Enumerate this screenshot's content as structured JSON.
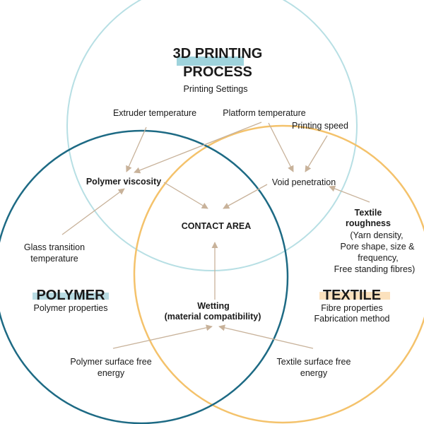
{
  "colors": {
    "process_circle": "#b7dfe4",
    "polymer_circle": "#1d6a84",
    "textile_circle": "#f4c26b",
    "arrow": "#c8b29a",
    "process_highlight": "#9fd3dc",
    "polymer_highlight": "#b9dce3",
    "textile_highlight": "#fbe1bd",
    "text": "#1a1a1a"
  },
  "process": {
    "title_line1": "3D PRINTING",
    "title_line2": "PROCESS",
    "subtitle": "Printing Settings"
  },
  "polymer": {
    "title": "POLYMER",
    "subtitle": "Polymer properties"
  },
  "textile": {
    "title": "TEXTILE",
    "subtitle_line1": "Fibre properties",
    "subtitle_line2": "Fabrication method"
  },
  "labels": {
    "extruder_temperature": "Extruder temperature",
    "platform_temperature": "Platform temperature",
    "printing_speed": "Printing speed",
    "polymer_viscosity": "Polymer viscosity",
    "void_penetration": "Void penetration",
    "contact_area": "CONTACT AREA",
    "glass_transition_line1": "Glass transition",
    "glass_transition_line2": "temperature",
    "textile_roughness_line1": "Textile",
    "textile_roughness_line2": "roughness",
    "roughness_detail_line1": "(Yarn density,",
    "roughness_detail_line2": "Pore shape, size &",
    "roughness_detail_line3": "frequency,",
    "roughness_detail_line4": "Free standing fibres)",
    "wetting_line1": "Wetting",
    "wetting_line2": "(material compatibility)",
    "polymer_surface_line1": "Polymer surface free",
    "polymer_surface_line2": "energy",
    "textile_surface_line1": "Textile surface free",
    "textile_surface_line2": "energy"
  }
}
